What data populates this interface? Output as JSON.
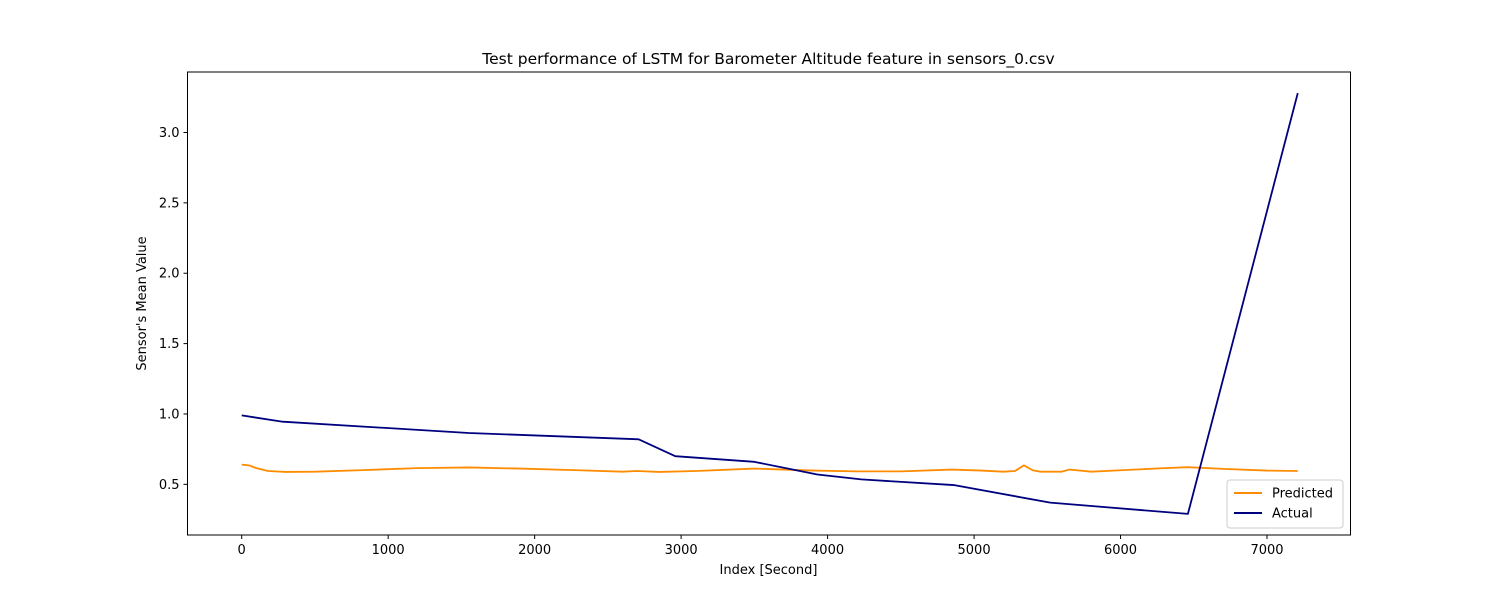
{
  "chart_data": {
    "type": "line",
    "title": "Test performance of LSTM for Barometer Altitude feature in sensors_0.csv",
    "xlabel": "Index [Second]",
    "ylabel": "Sensor's Mean Value",
    "xlim": [
      -370,
      7570
    ],
    "ylim": [
      0.14,
      3.43
    ],
    "xticks": [
      0,
      1000,
      2000,
      3000,
      4000,
      5000,
      6000,
      7000
    ],
    "xtick_labels": [
      "0",
      "1000",
      "2000",
      "3000",
      "4000",
      "5000",
      "6000",
      "7000"
    ],
    "yticks": [
      0.5,
      1.0,
      1.5,
      2.0,
      2.5,
      3.0
    ],
    "ytick_labels": [
      "0.5",
      "1.0",
      "1.5",
      "2.0",
      "2.5",
      "3.0"
    ],
    "grid": false,
    "legend_position": "lower-right",
    "series": [
      {
        "name": "Predicted",
        "color": "#ff8c00",
        "x": [
          0,
          50,
          100,
          180,
          300,
          500,
          800,
          1200,
          1550,
          1900,
          2300,
          2600,
          2700,
          2850,
          3100,
          3500,
          3900,
          4200,
          4500,
          4850,
          5050,
          5200,
          5280,
          5340,
          5400,
          5450,
          5600,
          5650,
          5700,
          5800,
          6000,
          6300,
          6460,
          6700,
          7000,
          7210
        ],
        "y": [
          0.64,
          0.635,
          0.615,
          0.595,
          0.588,
          0.59,
          0.6,
          0.615,
          0.62,
          0.612,
          0.6,
          0.59,
          0.595,
          0.588,
          0.595,
          0.612,
          0.598,
          0.592,
          0.592,
          0.605,
          0.598,
          0.59,
          0.595,
          0.635,
          0.6,
          0.59,
          0.59,
          0.605,
          0.6,
          0.59,
          0.6,
          0.615,
          0.622,
          0.61,
          0.598,
          0.595
        ]
      },
      {
        "name": "Actual",
        "color": "#00007f",
        "x": [
          0,
          280,
          1550,
          2710,
          2960,
          3500,
          3930,
          4230,
          4860,
          5520,
          6460,
          7210
        ],
        "y": [
          0.99,
          0.945,
          0.865,
          0.82,
          0.7,
          0.66,
          0.57,
          0.535,
          0.495,
          0.37,
          0.29,
          3.28
        ]
      }
    ]
  }
}
